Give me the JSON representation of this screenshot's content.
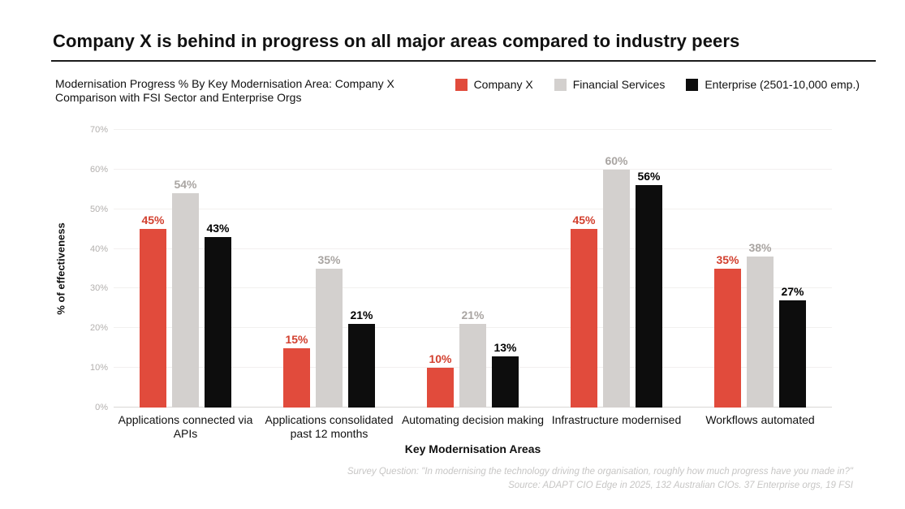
{
  "title": "Company X is behind in progress on all major areas compared to industry peers",
  "subtitle": "Modernisation Progress % By Key Modernisation Area: Company X Comparison with FSI Sector and Enterprise Orgs",
  "legend": [
    {
      "label": "Company X",
      "color": "#e14b3c"
    },
    {
      "label": "Financial Services",
      "color": "#d3d0ce"
    },
    {
      "label": "Enterprise (2501-10,000 emp.)",
      "color": "#0d0d0d"
    }
  ],
  "colors": {
    "company_x": "#e14b3c",
    "financial_services": "#d3d0ce",
    "enterprise": "#0d0d0d"
  },
  "chart_data": {
    "type": "bar",
    "title": "Modernisation Progress % By Key Modernisation Area: Company X Comparison with FSI Sector and Enterprise Orgs",
    "categories": [
      "Applications connected via APIs",
      "Applications consolidated past 12 months",
      "Automating decision making",
      "Infrastructure modernised",
      "Workflows automated"
    ],
    "series": [
      {
        "name": "Company X",
        "color": "#e14b3c",
        "label_color": "#d2402f",
        "values": [
          45,
          15,
          10,
          45,
          35
        ]
      },
      {
        "name": "Financial Services",
        "color": "#d3d0ce",
        "label_color": "#a9a5a2",
        "values": [
          54,
          35,
          21,
          60,
          38
        ]
      },
      {
        "name": "Enterprise (2501-10,000 emp.)",
        "color": "#0d0d0d",
        "label_color": "#000000",
        "values": [
          43,
          21,
          13,
          56,
          27
        ]
      }
    ],
    "xlabel": "Key Modernisation Areas",
    "ylabel": "% of effectiveness",
    "ylim": [
      0,
      70
    ],
    "ytick_step": 10,
    "ytick_format": "percent",
    "grid": true,
    "legend_position": "top-right",
    "data_labels": true
  },
  "footer": {
    "line1": "Survey Question: \"In modernising the technology driving the organisation, roughly how much progress have you made in?\"",
    "line2": "Source: ADAPT CIO Edge in 2025, 132 Australian CIOs. 37 Enterprise orgs, 19 FSI"
  }
}
